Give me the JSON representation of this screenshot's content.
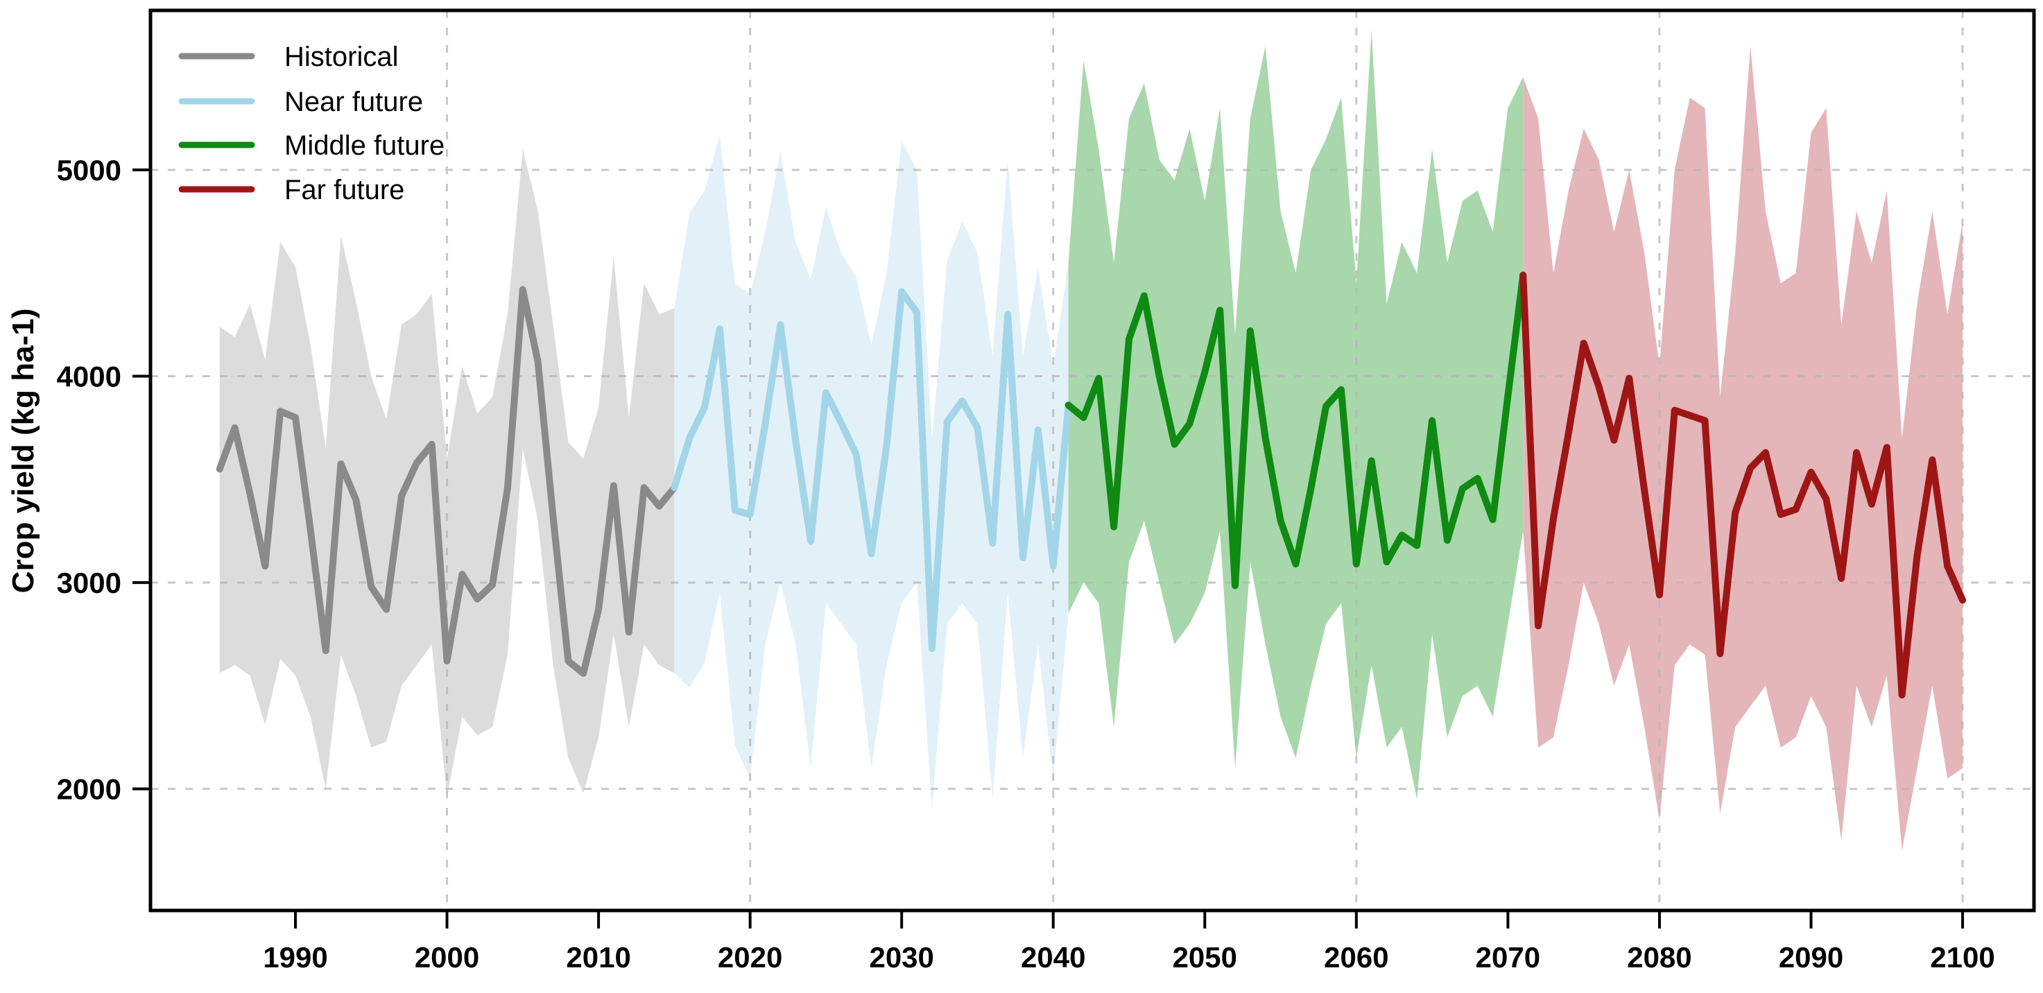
{
  "figure": {
    "type_note": "annual crop yield time series with uncertainty bands",
    "background": "#ffffff",
    "frame_color": "#000000",
    "gridline_color": "#b6b6b6"
  },
  "y_axis": {
    "title": "Crop yield (kg ha-1)",
    "tick_values": [
      2000,
      3000,
      4000,
      5000
    ],
    "tick_labels": [
      "2000",
      "3000",
      "4000",
      "5000"
    ]
  },
  "x_axis": {
    "tick_values": [
      1990,
      2000,
      2010,
      2020,
      2030,
      2040,
      2050,
      2060,
      2070,
      2080,
      2090,
      2100
    ],
    "tick_labels": [
      "1990",
      "2000",
      "2010",
      "2020",
      "2030",
      "2040",
      "2050",
      "2060",
      "2070",
      "2080",
      "2090",
      "2100"
    ],
    "gridline_years": [
      2000,
      2020,
      2040,
      2060,
      2080,
      2100
    ]
  },
  "legend": {
    "items": [
      {
        "label": "Historical",
        "color": "#8a8a8a"
      },
      {
        "label": "Near future",
        "color": "#a3d5e8"
      },
      {
        "label": "Middle future",
        "color": "#0f8a12"
      },
      {
        "label": "Far future",
        "color": "#9e1515"
      }
    ]
  },
  "chart_data": {
    "type": "line",
    "title": "",
    "xlabel": "",
    "ylabel": "Crop yield (kg ha-1)",
    "ylim": [
      1400,
      5800
    ],
    "xlim": [
      1980,
      2105
    ],
    "grid": true,
    "legend_position": "top-left",
    "series": [
      {
        "name": "Historical",
        "line_color": "#8a8a8a",
        "band_color": "#dcdcdc",
        "start_year": 1985,
        "line": [
          3550,
          3750,
          3430,
          3080,
          3830,
          3800,
          3250,
          2670,
          3575,
          3400,
          2980,
          2870,
          3420,
          3580,
          3670,
          2620,
          3040,
          2920,
          2990,
          3460,
          4420,
          4070,
          3320,
          2620,
          2560,
          2870,
          3470,
          2760,
          3460,
          3370,
          3460
        ],
        "upper": [
          4240,
          4190,
          4350,
          4080,
          4650,
          4530,
          4150,
          3650,
          4680,
          4360,
          4000,
          3790,
          4250,
          4300,
          4400,
          3600,
          4050,
          3820,
          3900,
          4300,
          5100,
          4800,
          4250,
          3680,
          3600,
          3850,
          4580,
          3800,
          4450,
          4300,
          4330
        ],
        "lower": [
          2560,
          2600,
          2550,
          2310,
          2630,
          2550,
          2350,
          2000,
          2650,
          2450,
          2200,
          2230,
          2500,
          2600,
          2700,
          1960,
          2350,
          2260,
          2300,
          2650,
          3650,
          3300,
          2600,
          2150,
          1980,
          2250,
          2750,
          2300,
          2700,
          2600,
          2560
        ]
      },
      {
        "name": "Near future",
        "line_color": "#a3d5e8",
        "band_color": "#e2f1f8",
        "start_year": 2015,
        "line": [
          3460,
          3700,
          3850,
          4230,
          3350,
          3330,
          3770,
          4250,
          3690,
          3200,
          3920,
          3775,
          3620,
          3140,
          3660,
          4410,
          4310,
          2680,
          3780,
          3880,
          3750,
          3190,
          4300,
          3120,
          3740,
          3080,
          3860
        ],
        "upper": [
          4330,
          4790,
          4900,
          5170,
          4450,
          4400,
          4700,
          5090,
          4650,
          4470,
          4820,
          4600,
          4480,
          4150,
          4500,
          5140,
          5000,
          3700,
          4560,
          4750,
          4600,
          4100,
          5050,
          4100,
          4530,
          4050,
          4550
        ],
        "lower": [
          2560,
          2490,
          2610,
          2950,
          2210,
          2050,
          2700,
          3000,
          2700,
          2100,
          2900,
          2800,
          2700,
          2100,
          2600,
          2900,
          3000,
          1900,
          2800,
          2900,
          2800,
          1950,
          2950,
          2150,
          2700,
          2050,
          2850
        ]
      },
      {
        "name": "Middle future",
        "line_color": "#0f8a12",
        "band_color": "#a7d7ab",
        "start_year": 2041,
        "line": [
          3860,
          3800,
          3990,
          3270,
          4180,
          4390,
          4000,
          3670,
          3770,
          4020,
          4320,
          2985,
          4220,
          3700,
          3300,
          3090,
          3455,
          3855,
          3935,
          3090,
          3590,
          3100,
          3230,
          3180,
          3785,
          3205,
          3455,
          3505,
          3305,
          3905,
          4490
        ],
        "upper": [
          4550,
          5530,
          5100,
          4550,
          5250,
          5420,
          5050,
          4950,
          5200,
          4850,
          5300,
          4200,
          5250,
          5600,
          4800,
          4500,
          5000,
          5150,
          5350,
          4450,
          5680,
          4350,
          4650,
          4500,
          5100,
          4550,
          4850,
          4900,
          4700,
          5300,
          5450
        ],
        "lower": [
          2850,
          3000,
          2900,
          2300,
          3100,
          3300,
          3000,
          2700,
          2800,
          2950,
          3250,
          2100,
          3100,
          2700,
          2350,
          2150,
          2500,
          2800,
          2900,
          2150,
          2600,
          2200,
          2300,
          1950,
          2750,
          2250,
          2450,
          2500,
          2350,
          2800,
          3250
        ]
      },
      {
        "name": "Far future",
        "line_color": "#9e1515",
        "band_color": "#e4b6b9",
        "start_year": 2071,
        "line": [
          4490,
          2790,
          3310,
          3725,
          4160,
          3950,
          3690,
          3990,
          3450,
          2940,
          3835,
          3810,
          3785,
          2655,
          3340,
          3555,
          3630,
          3330,
          3355,
          3535,
          3405,
          3020,
          3630,
          3380,
          3655,
          2455,
          3130,
          3595,
          3080,
          2915
        ],
        "upper": [
          5450,
          5250,
          4500,
          4900,
          5200,
          5050,
          4700,
          5000,
          4600,
          4050,
          5000,
          5350,
          5300,
          3900,
          4600,
          5600,
          4800,
          4450,
          4500,
          5180,
          5300,
          4250,
          4800,
          4550,
          4900,
          3700,
          4350,
          4800,
          4300,
          4750
        ],
        "lower": [
          3250,
          2200,
          2250,
          2600,
          3000,
          2800,
          2500,
          2700,
          2300,
          1850,
          2600,
          2700,
          2650,
          1880,
          2300,
          2400,
          2500,
          2200,
          2250,
          2450,
          2300,
          1750,
          2500,
          2300,
          2550,
          1700,
          2100,
          2500,
          2050,
          2100
        ]
      }
    ]
  }
}
